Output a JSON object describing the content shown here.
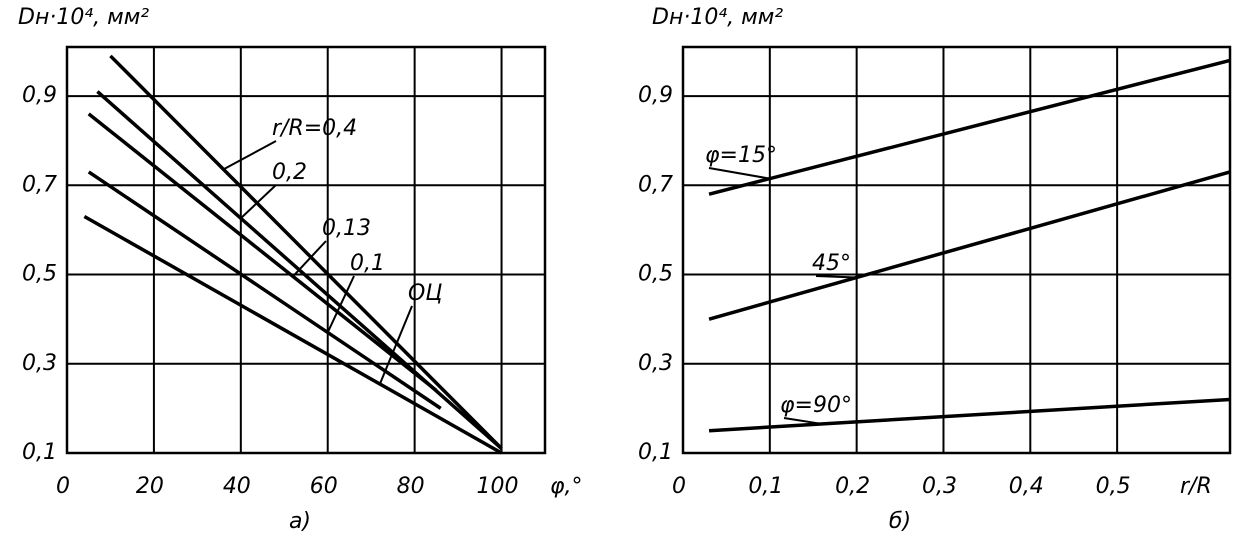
{
  "chart_data": [
    {
      "type": "line",
      "y_label": "Dн·10⁴, мм²",
      "x_label": "φ,°",
      "caption": "а)",
      "xlim": [
        0,
        110
      ],
      "ylim": [
        0.1,
        1.01
      ],
      "xticks": [
        0,
        20,
        40,
        60,
        80,
        100
      ],
      "yticks": [
        {
          "value": 0.1,
          "label": "0,1"
        },
        {
          "value": 0.3,
          "label": "0,3"
        },
        {
          "value": 0.5,
          "label": "0,5"
        },
        {
          "value": 0.7,
          "label": "0,7"
        },
        {
          "value": 0.9,
          "label": "0,9"
        }
      ],
      "grid": true,
      "series": [
        {
          "name": "r/R=0,4",
          "color": "#000000",
          "x": [
            10,
            100
          ],
          "values": [
            0.99,
            0.11
          ]
        },
        {
          "name": "0,2",
          "color": "#000000",
          "x": [
            7,
            100
          ],
          "values": [
            0.91,
            0.11
          ]
        },
        {
          "name": "0,13",
          "color": "#000000",
          "x": [
            5,
            85
          ],
          "values": [
            0.86,
            0.24
          ]
        },
        {
          "name": "0,1",
          "color": "#000000",
          "x": [
            5,
            86
          ],
          "values": [
            0.73,
            0.2
          ]
        },
        {
          "name": "ОЦ",
          "color": "#000000",
          "x": [
            4,
            100
          ],
          "values": [
            0.63,
            0.1
          ]
        }
      ]
    },
    {
      "type": "line",
      "y_label": "Dн·10⁴, мм²",
      "x_label": "r/R",
      "caption": "б)",
      "xlim": [
        0,
        0.63
      ],
      "ylim": [
        0.1,
        1.01
      ],
      "xticks": [
        0,
        {
          "value": 0.1,
          "label": "0,1"
        },
        {
          "value": 0.2,
          "label": "0,2"
        },
        {
          "value": 0.3,
          "label": "0,3"
        },
        {
          "value": 0.4,
          "label": "0,4"
        },
        {
          "value": 0.5,
          "label": "0,5"
        }
      ],
      "yticks": [
        {
          "value": 0.1,
          "label": "0,1"
        },
        {
          "value": 0.3,
          "label": "0,3"
        },
        {
          "value": 0.5,
          "label": "0,5"
        },
        {
          "value": 0.7,
          "label": "0,7"
        },
        {
          "value": 0.9,
          "label": "0,9"
        }
      ],
      "grid": true,
      "series": [
        {
          "name": "φ=15°",
          "color": "#000000",
          "x": [
            0.03,
            0.63
          ],
          "values": [
            0.68,
            0.98
          ]
        },
        {
          "name": "45°",
          "color": "#000000",
          "x": [
            0.03,
            0.63
          ],
          "values": [
            0.4,
            0.73
          ]
        },
        {
          "name": "φ=90°",
          "color": "#000000",
          "x": [
            0.03,
            0.63
          ],
          "values": [
            0.15,
            0.22
          ]
        }
      ]
    }
  ]
}
